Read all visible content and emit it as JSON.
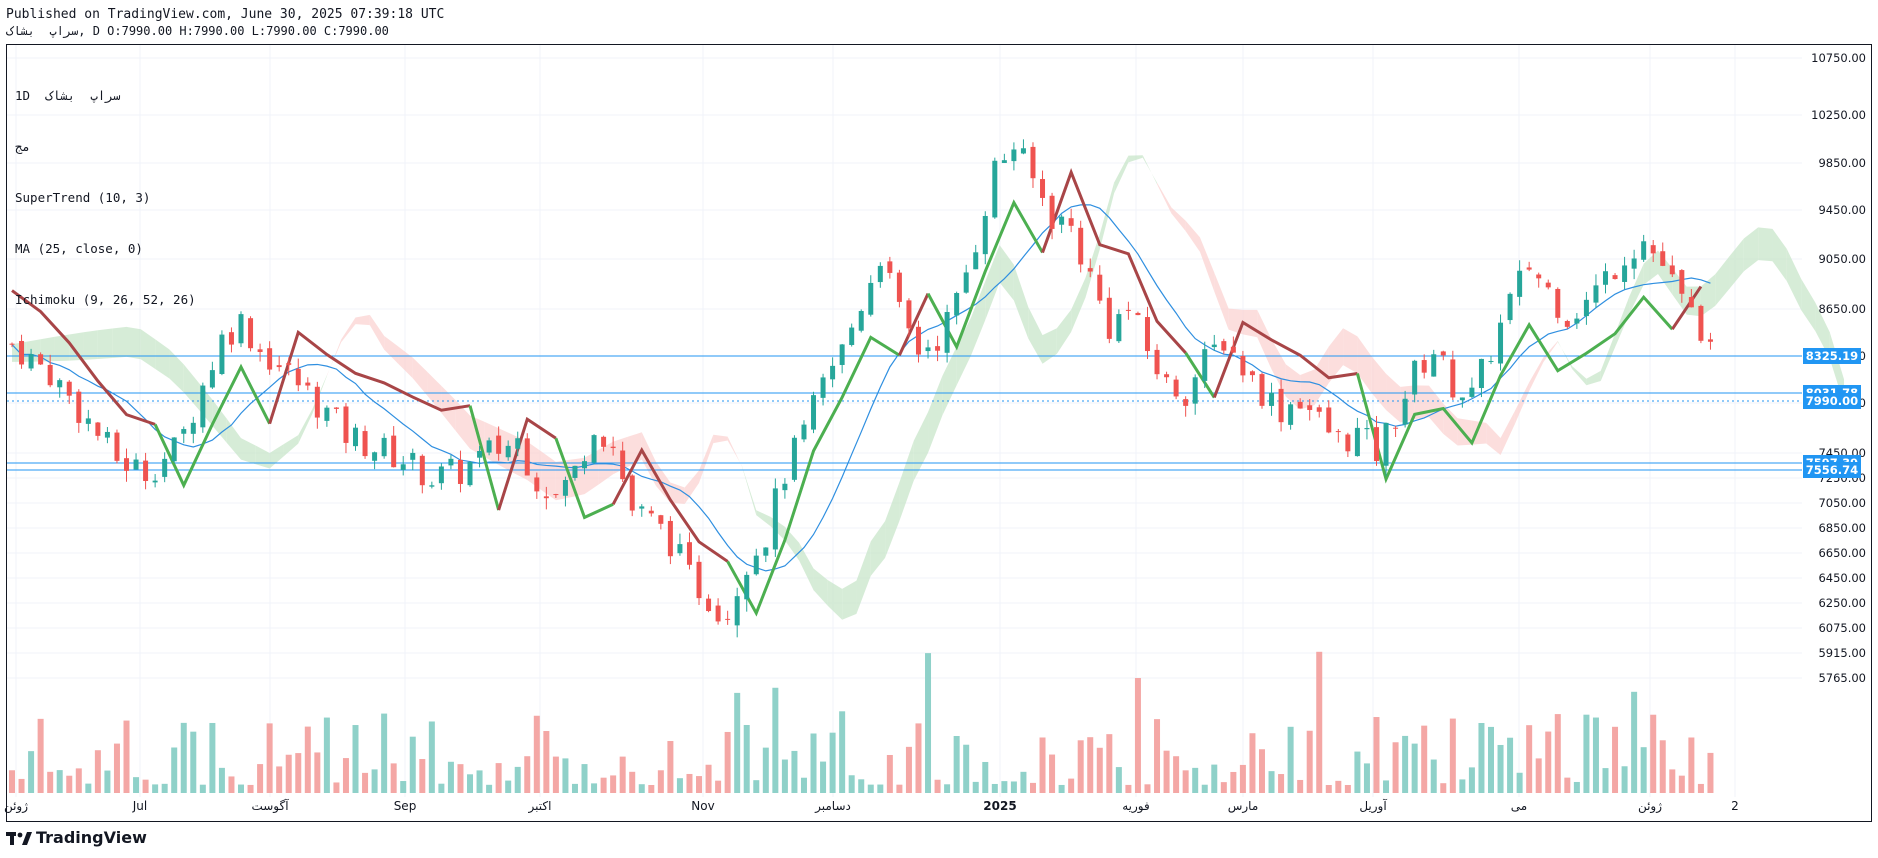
{
  "header": {
    "published": "Published on TradingView.com, June 30, 2025 07:39:18 UTC",
    "ohlc": "سراپ  بشاک, D O:7990.00 H:7990.00 L:7990.00 C:7990.00"
  },
  "legend": {
    "symbol": "1D  سراپ  بشاک",
    "sub": "مج",
    "supertrend": "SuperTrend (10, 3)",
    "ma": "MA (25, close, 0)",
    "ichimoku": "Ichimoku (9, 26, 52, 26)"
  },
  "brand": {
    "name": "TradingView",
    "logo": "tradingview-logo-icon"
  },
  "colors": {
    "up": "#26a69a",
    "down": "#ef5350",
    "vol_up": "#8fd1c9",
    "vol_down": "#f4a7a5",
    "supertrend_up": "#4caf50",
    "supertrend_down": "#a84547",
    "ma": "#2f8fe0",
    "cloud_bull": "#c8e6c9",
    "cloud_bear": "#fbd3d1",
    "level_line": "#2196f3"
  },
  "chart_data": {
    "type": "candlestick",
    "y_axis_ticks": [
      "10750.00",
      "10250.00",
      "9850.00",
      "9450.00",
      "9050.00",
      "8650.00",
      "8250.00",
      "7850.00",
      "7450.00",
      "7250.00",
      "7050.00",
      "6850.00",
      "6650.00",
      "6450.00",
      "6250.00",
      "6075.00",
      "5915.00",
      "5765.00"
    ],
    "x_axis_labels": [
      "ژوئن",
      "Jul",
      "آگوست",
      "Sep",
      "اکتبر",
      "Nov",
      "دسامبر",
      "2025",
      "فوریه",
      "مارس",
      "آوریل",
      "می",
      "ژوئن",
      "2"
    ],
    "price_labels": [
      {
        "value": "8325.19",
        "color": "#2196f3"
      },
      {
        "value": "8031.78",
        "color": "#2196f3"
      },
      {
        "value": "7990.00",
        "color": "#2196f3"
      },
      {
        "value": "7597.39",
        "color": "#2196f3"
      },
      {
        "value": "7556.74",
        "color": "#2196f3"
      }
    ],
    "horizontal_levels": [
      8325.19,
      8031.78,
      7597.39,
      7556.74
    ],
    "last_close": 7990,
    "indicators": [
      "SuperTrend (10, 3)",
      "MA (25, close, 0)",
      "Ichimoku (9, 26, 52, 26)"
    ],
    "price_path": [
      [
        0,
        8350
      ],
      [
        8,
        8100
      ],
      [
        16,
        7700
      ],
      [
        22,
        7400
      ],
      [
        28,
        7300
      ],
      [
        35,
        7500
      ],
      [
        40,
        8000
      ],
      [
        44,
        8400
      ],
      [
        48,
        8550
      ],
      [
        52,
        8300
      ],
      [
        58,
        8100
      ],
      [
        64,
        7850
      ],
      [
        70,
        7600
      ],
      [
        76,
        7500
      ],
      [
        82,
        7400
      ],
      [
        88,
        7250
      ],
      [
        94,
        7300
      ],
      [
        100,
        7450
      ],
      [
        106,
        7550
      ],
      [
        110,
        7250
      ],
      [
        114,
        7100
      ],
      [
        118,
        7300
      ],
      [
        122,
        7700
      ],
      [
        126,
        7500
      ],
      [
        130,
        7000
      ],
      [
        134,
        6900
      ],
      [
        138,
        6750
      ],
      [
        142,
        6450
      ],
      [
        146,
        6300
      ],
      [
        150,
        6200
      ],
      [
        154,
        6600
      ],
      [
        158,
        6800
      ],
      [
        162,
        7300
      ],
      [
        166,
        7600
      ],
      [
        170,
        8000
      ],
      [
        174,
        8300
      ],
      [
        178,
        8700
      ],
      [
        182,
        9100
      ],
      [
        186,
        8600
      ],
      [
        190,
        8300
      ],
      [
        194,
        8400
      ],
      [
        198,
        8700
      ],
      [
        202,
        9200
      ],
      [
        206,
        9800
      ],
      [
        210,
        10000
      ],
      [
        214,
        9700
      ],
      [
        218,
        9400
      ],
      [
        222,
        9300
      ],
      [
        226,
        8900
      ],
      [
        230,
        8500
      ],
      [
        234,
        8650
      ],
      [
        238,
        8300
      ],
      [
        242,
        8000
      ],
      [
        246,
        7950
      ],
      [
        250,
        8200
      ],
      [
        254,
        8400
      ],
      [
        258,
        8150
      ],
      [
        262,
        7950
      ],
      [
        266,
        7800
      ],
      [
        270,
        7900
      ],
      [
        274,
        7700
      ],
      [
        278,
        7550
      ],
      [
        282,
        7600
      ],
      [
        286,
        7450
      ],
      [
        290,
        7750
      ],
      [
        294,
        8100
      ],
      [
        298,
        8300
      ],
      [
        302,
        8000
      ],
      [
        306,
        7900
      ],
      [
        310,
        8300
      ],
      [
        314,
        8700
      ],
      [
        318,
        9000
      ],
      [
        322,
        8800
      ],
      [
        326,
        8600
      ],
      [
        330,
        8700
      ],
      [
        334,
        8900
      ],
      [
        338,
        9100
      ],
      [
        342,
        9200
      ],
      [
        346,
        9000
      ],
      [
        350,
        8700
      ],
      [
        354,
        8500
      ],
      [
        358,
        7990
      ]
    ]
  }
}
